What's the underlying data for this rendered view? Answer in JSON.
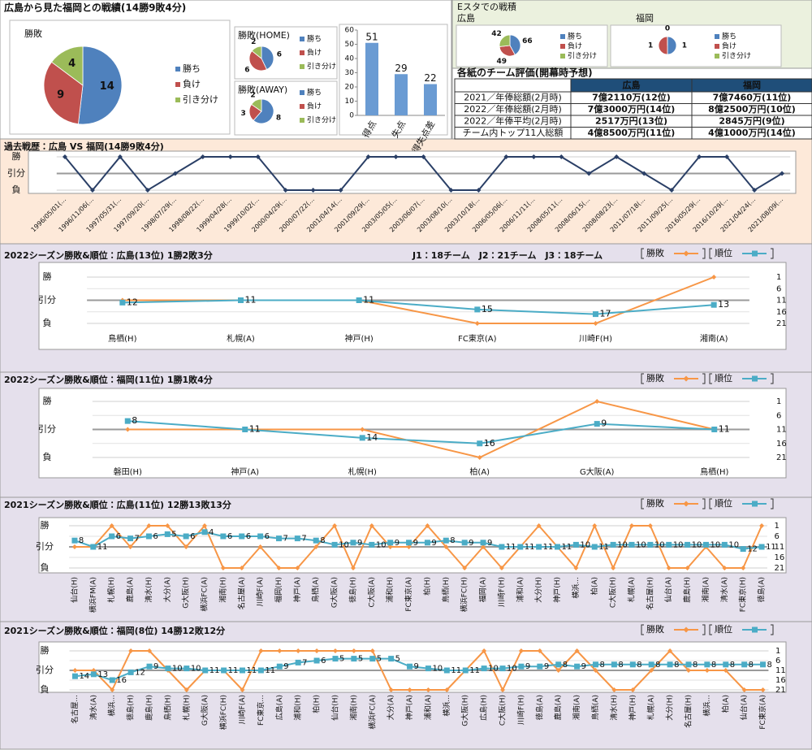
{
  "header": {
    "title": "広島から見た福岡との戦績(14勝9敗4分)",
    "estadium_title": "Eスタでの戦積"
  },
  "table": {
    "title": "各紙のチーム評価(開幕時予想)",
    "header": [
      "広島",
      "福岡"
    ],
    "rows": [
      [
        "2021／年俸総額(2月時)",
        "7億2110万(12位)",
        "7億7460万(11位)"
      ],
      [
        "2022／年俸総額(2月時)",
        "7億3000万円(14位)",
        "8億2500万円(10位)"
      ],
      [
        "2022／年俸平均(2月時)",
        "2517万円(13位)",
        "2845万円(9位)"
      ],
      [
        "チーム内トップ11人総額",
        "4億8500万円(11位)",
        "4億1000万円(14位)"
      ]
    ]
  },
  "chart_data": [
    {
      "type": "pie",
      "title": "勝敗",
      "categories": [
        "勝ち",
        "負け",
        "引き分け"
      ],
      "values": [
        14,
        9,
        4
      ],
      "colors": [
        "#4f81bd",
        "#c0504d",
        "#9bbb59"
      ]
    },
    {
      "type": "pie",
      "title": "勝敗(HOME)",
      "categories": [
        "勝ち",
        "負け",
        "引き分け"
      ],
      "values": [
        6,
        6,
        2
      ],
      "colors": [
        "#4f81bd",
        "#c0504d",
        "#9bbb59"
      ]
    },
    {
      "type": "pie",
      "title": "勝敗(AWAY)",
      "categories": [
        "勝ち",
        "負け",
        "引き分け"
      ],
      "values": [
        8,
        3,
        2
      ],
      "colors": [
        "#4f81bd",
        "#c0504d",
        "#9bbb59"
      ]
    },
    {
      "type": "bar",
      "categories": [
        "得点",
        "失点",
        "得失点差"
      ],
      "values": [
        51,
        29,
        22
      ],
      "color": "#6a9bd3",
      "ylim": [
        0,
        60
      ],
      "yticks": [
        0,
        10,
        20,
        30,
        40,
        50,
        60
      ],
      "grid": false
    },
    {
      "type": "pie",
      "title": "広島",
      "categories": [
        "勝ち",
        "負け",
        "引き分け"
      ],
      "values": [
        66,
        49,
        42
      ],
      "colors": [
        "#4f81bd",
        "#c0504d",
        "#9bbb59"
      ]
    },
    {
      "type": "pie",
      "title": "福岡",
      "categories": [
        "勝ち",
        "負け",
        "引き分け"
      ],
      "values": [
        1,
        1,
        0
      ],
      "colors": [
        "#4f81bd",
        "#c0504d",
        "#9bbb59"
      ]
    },
    {
      "type": "line",
      "title": "過去戦歴：広島 VS 福岡(14勝9敗4分)",
      "categories": [
        "1996/05/01(...",
        "1996/11/06(...",
        "1997/05/31(...",
        "1997/09/20(...",
        "1998/07/29(...",
        "1998/08/22(...",
        "1999/04/28(...",
        "1999/10/02(...",
        "2000/04/29(...",
        "2000/07/22(...",
        "2001/04/14(...",
        "2001/09/29(...",
        "2003/05/05(...",
        "2003/06/07(...",
        "2003/08/10(...",
        "2003/10/18(...",
        "2006/05/06(...",
        "2006/11/11(...",
        "2008/05/11(...",
        "2008/06/15(...",
        "2008/08/23(...",
        "2011/07/18(...",
        "2011/09/25(...",
        "2016/05/29(...",
        "2016/10/29(...",
        "2021/04/24(...",
        "2021/08/09(..."
      ],
      "values": [
        1,
        -1,
        1,
        -1,
        0,
        1,
        1,
        1,
        -1,
        -1,
        -1,
        1,
        1,
        1,
        -1,
        -1,
        1,
        1,
        1,
        0,
        1,
        0,
        -1,
        1,
        1,
        -1,
        0
      ],
      "color": "#2a3f66",
      "ylim": [
        -1,
        1
      ],
      "yticks": [
        {
          "value": 1,
          "label": "勝"
        },
        {
          "value": 0,
          "label": "引分"
        },
        {
          "value": -1,
          "label": "負"
        }
      ],
      "grid": true
    },
    {
      "type": "line",
      "title": "2022シーズン勝敗&順位：広島(13位) 1勝2敗3分",
      "annotation": "J1：18チーム　J2：21チーム　J3：18チーム",
      "categories": [
        "鳥栖(H)",
        "札幌(A)",
        "神戸(H)",
        "FC東京(A)",
        "川崎F(H)",
        "湘南(A)"
      ],
      "series": [
        {
          "name": "勝敗",
          "color": "#f79646",
          "values": [
            0,
            0,
            0,
            -1,
            -1,
            1
          ]
        },
        {
          "name": "順位",
          "color": "#4bacc6",
          "values": [
            12,
            11,
            11,
            15,
            17,
            13
          ],
          "axis": "y2",
          "data_labels": true
        }
      ],
      "ylim": [
        -1,
        1
      ],
      "yticks": [
        {
          "value": 1,
          "label": "勝"
        },
        {
          "value": 0,
          "label": "引分"
        },
        {
          "value": -1,
          "label": "負"
        }
      ],
      "y2lim": [
        21,
        1
      ],
      "y2ticks": [
        1,
        6,
        11,
        16,
        21
      ],
      "grid": true
    },
    {
      "type": "line",
      "title": "2022シーズン勝敗&順位：福岡(11位) 1勝1敗4分",
      "categories": [
        "磐田(H)",
        "神戸(A)",
        "札幌(H)",
        "柏(A)",
        "G大阪(A)",
        "鳥栖(H)"
      ],
      "series": [
        {
          "name": "勝敗",
          "color": "#f79646",
          "values": [
            0,
            0,
            0,
            -1,
            1,
            0
          ]
        },
        {
          "name": "順位",
          "color": "#4bacc6",
          "values": [
            8,
            11,
            14,
            16,
            9,
            11
          ],
          "axis": "y2",
          "data_labels": true
        }
      ],
      "ylim": [
        -1,
        1
      ],
      "yticks": [
        {
          "value": 1,
          "label": "勝"
        },
        {
          "value": 0,
          "label": "引分"
        },
        {
          "value": -1,
          "label": "負"
        }
      ],
      "y2lim": [
        21,
        1
      ],
      "y2ticks": [
        1,
        6,
        11,
        16,
        21
      ],
      "grid": true
    },
    {
      "type": "line",
      "title": "2021シーズン勝敗&順位：広島(11位) 12勝13敗13分",
      "categories": [
        "仙台(H)",
        "横浜FM(A)",
        "札幌(H)",
        "鹿島(A)",
        "清水(H)",
        "大分(A)",
        "G大阪(H)",
        "横浜FC(A)",
        "湘南(H)",
        "名古屋(A)",
        "川崎F(A)",
        "福岡(H)",
        "神戸(A)",
        "鳥栖(A)",
        "G大阪(A)",
        "徳島(H)",
        "C大阪(A)",
        "浦和(H)",
        "FC東京(A)",
        "柏(H)",
        "鳥栖(H)",
        "横浜FC(H)",
        "福岡(A)",
        "川崎F(H)",
        "浦和(A)",
        "大分(H)",
        "神戸(H)",
        "横浜...",
        "柏(A)",
        "C大阪(H)",
        "札幌(A)",
        "名古屋(H)",
        "仙台(A)",
        "鹿島(H)",
        "湘南(A)",
        "清水(A)",
        "FC東京(H)",
        "徳島(A)"
      ],
      "series": [
        {
          "name": "勝敗",
          "color": "#f79646",
          "values": [
            0,
            0,
            1,
            0,
            1,
            1,
            0,
            1,
            -1,
            -1,
            0,
            -1,
            -1,
            0,
            1,
            -1,
            1,
            0,
            0,
            1,
            0,
            -1,
            0,
            -1,
            0,
            1,
            0,
            -1,
            1,
            -1,
            1,
            1,
            -1,
            -1,
            0,
            -1,
            -1,
            1
          ]
        },
        {
          "name": "順位",
          "color": "#4bacc6",
          "values": [
            8,
            11,
            6,
            7,
            6,
            5,
            6,
            4,
            6,
            6,
            6,
            7,
            7,
            8,
            10,
            9,
            10,
            9,
            9,
            9,
            8,
            9,
            9,
            11,
            11,
            11,
            11,
            10,
            11,
            10,
            10,
            10,
            10,
            10,
            10,
            10,
            12,
            11
          ],
          "axis": "y2",
          "data_labels": true
        }
      ],
      "ylim": [
        -1,
        1
      ],
      "yticks": [
        {
          "value": 1,
          "label": "勝"
        },
        {
          "value": 0,
          "label": "引分"
        },
        {
          "value": -1,
          "label": "負"
        }
      ],
      "y2lim": [
        21,
        1
      ],
      "y2ticks": [
        1,
        6,
        11,
        16,
        21
      ],
      "grid": true
    },
    {
      "type": "line",
      "title": "2021シーズン勝敗&順位：福岡(8位) 14勝12敗12分",
      "categories": [
        "名古屋...",
        "清水(A)",
        "横浜...",
        "徳島(H)",
        "鹿島(H)",
        "鳥栖(H)",
        "札幌(H)",
        "G大阪(A)",
        "横浜FC(H)",
        "川崎F(A)",
        "FC東京...",
        "広島(A)",
        "浦和(H)",
        "柏(H)",
        "仙台(H)",
        "湘南(H)",
        "横浜FC(A)",
        "大分(A)",
        "神戸(A)",
        "浦和(A)",
        "横浜...",
        "G大阪(H)",
        "広島(H)",
        "C大阪(H)",
        "川崎F(H)",
        "徳島(A)",
        "鹿島(A)",
        "湘南(A)",
        "鳥栖(A)",
        "清水(H)",
        "神戸(H)",
        "札幌(A)",
        "大分(H)",
        "名古屋(H)",
        "横浜...",
        "柏(A)",
        "仙台(A)",
        "FC東京(A)"
      ],
      "series": [
        {
          "name": "勝敗",
          "color": "#f79646",
          "values": [
            0,
            0,
            -1,
            1,
            1,
            0,
            -1,
            0,
            0,
            -1,
            1,
            1,
            1,
            1,
            1,
            1,
            1,
            -1,
            -1,
            -1,
            -1,
            0,
            1,
            -1,
            1,
            1,
            0,
            1,
            0,
            -1,
            -1,
            0,
            1,
            0,
            0,
            0,
            -1,
            -1
          ]
        },
        {
          "name": "順位",
          "color": "#4bacc6",
          "values": [
            14,
            13,
            16,
            12,
            9,
            10,
            10,
            11,
            11,
            11,
            11,
            9,
            7,
            6,
            5,
            5,
            5,
            5,
            9,
            10,
            11,
            11,
            10,
            10,
            9,
            9,
            8,
            9,
            8,
            8,
            8,
            8,
            8,
            8,
            8,
            8,
            8,
            8
          ],
          "axis": "y2",
          "data_labels": true
        }
      ],
      "ylim": [
        -1,
        1
      ],
      "yticks": [
        {
          "value": 1,
          "label": "勝"
        },
        {
          "value": 0,
          "label": "引分"
        },
        {
          "value": -1,
          "label": "負"
        }
      ],
      "y2lim": [
        21,
        1
      ],
      "y2ticks": [
        1,
        6,
        11,
        16,
        21
      ],
      "grid": true
    }
  ]
}
